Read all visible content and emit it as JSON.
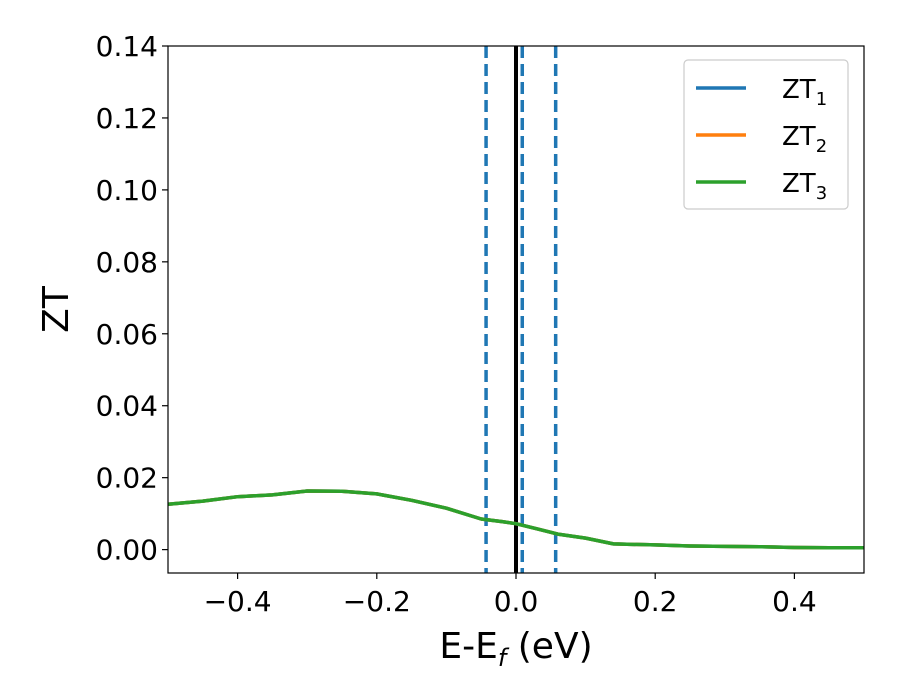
{
  "chart_data": {
    "type": "line",
    "title": "",
    "xlabel": "E-E",
    "xlabel_sub": "f",
    "xlabel_unit": " (eV)",
    "ylabel": "ZT",
    "xlim": [
      -0.5,
      0.5
    ],
    "ylim": [
      -0.0065,
      0.14
    ],
    "grid": false,
    "legend_position": "top-right",
    "x_ticks": [
      -0.4,
      -0.2,
      0.0,
      0.2,
      0.4
    ],
    "x_tick_labels": [
      "−0.4",
      "−0.2",
      "0.0",
      "0.2",
      "0.4"
    ],
    "y_ticks": [
      0.0,
      0.02,
      0.04,
      0.06,
      0.08,
      0.1,
      0.12,
      0.14
    ],
    "y_tick_labels": [
      "0.00",
      "0.02",
      "0.04",
      "0.06",
      "0.08",
      "0.10",
      "0.12",
      "0.14"
    ],
    "x": [
      -0.5,
      -0.45,
      -0.4,
      -0.35,
      -0.3,
      -0.25,
      -0.2,
      -0.15,
      -0.1,
      -0.05,
      -0.02,
      0.0,
      0.03,
      0.06,
      0.1,
      0.14,
      0.2,
      0.25,
      0.3,
      0.35,
      0.4,
      0.45,
      0.5
    ],
    "series": [
      {
        "name": "ZT",
        "sub": "1",
        "color": "#1f77b4",
        "values": [
          0.0126,
          0.0135,
          0.0147,
          0.0152,
          0.0163,
          0.0162,
          0.0155,
          0.0137,
          0.0115,
          0.0085,
          0.0078,
          0.0072,
          0.0058,
          0.0043,
          0.0032,
          0.0016,
          0.0013,
          0.001,
          0.0009,
          0.0008,
          0.0006,
          0.0005,
          0.0005
        ]
      },
      {
        "name": "ZT",
        "sub": "2",
        "color": "#ff7f0e",
        "values": [
          0.0126,
          0.0135,
          0.0147,
          0.0152,
          0.0163,
          0.0162,
          0.0155,
          0.0137,
          0.0115,
          0.0085,
          0.0078,
          0.0072,
          0.0058,
          0.0043,
          0.0032,
          0.0016,
          0.0013,
          0.001,
          0.0009,
          0.0008,
          0.0006,
          0.0005,
          0.0005
        ]
      },
      {
        "name": "ZT",
        "sub": "3",
        "color": "#2ca02c",
        "values": [
          0.0126,
          0.0135,
          0.0147,
          0.0152,
          0.0163,
          0.0162,
          0.0155,
          0.0137,
          0.0115,
          0.0085,
          0.0078,
          0.0072,
          0.0058,
          0.0043,
          0.0032,
          0.0016,
          0.0013,
          0.001,
          0.0009,
          0.0008,
          0.0006,
          0.0005,
          0.0005
        ]
      }
    ],
    "vlines": [
      {
        "x": -0.043,
        "color": "#1f77b4",
        "style": "dashed"
      },
      {
        "x": 0.0,
        "color": "#000000",
        "style": "solid"
      },
      {
        "x": 0.009,
        "color": "#1f77b4",
        "style": "dashed"
      },
      {
        "x": 0.057,
        "color": "#1f77b4",
        "style": "dashed"
      }
    ]
  }
}
